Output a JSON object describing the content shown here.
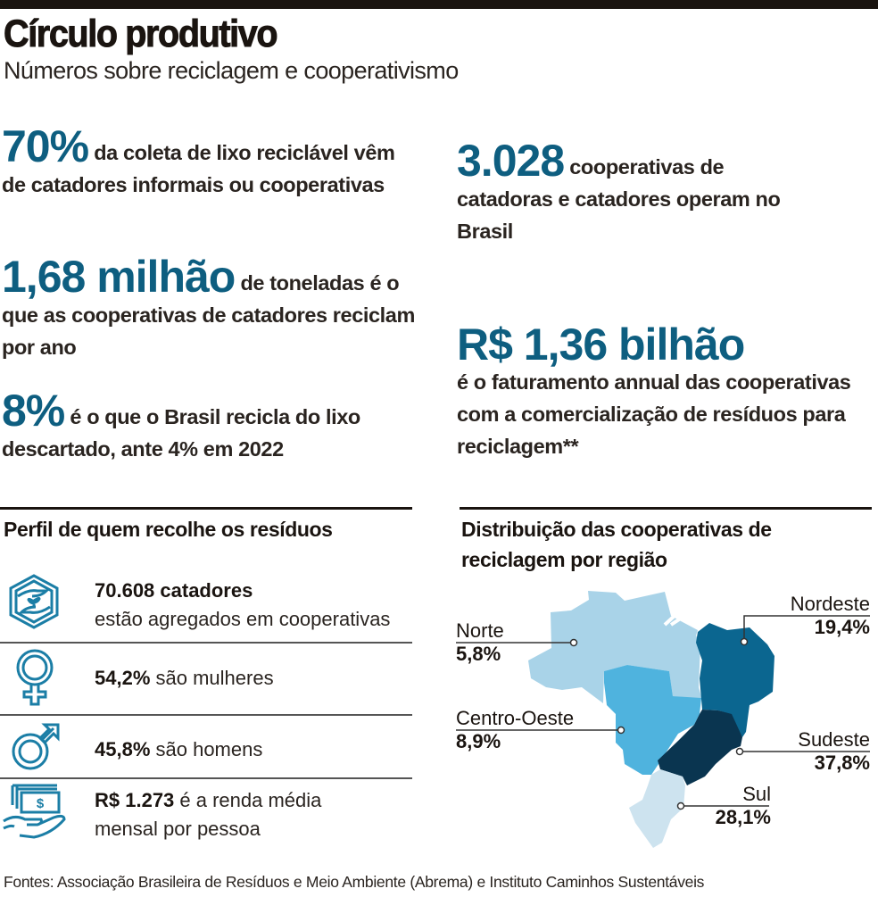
{
  "header": {
    "title": "Círculo produtivo",
    "subtitle": "Números sobre reciclagem e cooperativismo"
  },
  "stats": [
    {
      "value": "70%",
      "text": " da coleta de lixo reciclável vêm de catadores informais ou cooperativas"
    },
    {
      "value": "1,68 milhão",
      "text": " de toneladas é o que as cooperativas de catadores reciclam por ano"
    },
    {
      "value": "8%",
      "text": " é o que o Brasil recicla do lixo descartado, ante 4% em 2022"
    },
    {
      "value": "3.028",
      "text": " cooperativas de catadoras e catadores operam no Brasil"
    },
    {
      "value": "R$ 1,36 bilhão",
      "text": "é o faturamento annual das cooperativas com a comercialização de resíduos para reciclagem**"
    }
  ],
  "profile": {
    "title": "Perfil de quem recolhe os resíduos",
    "items": [
      {
        "icon": "hands-plant-icon",
        "bold": "70.608 catadores",
        "text": "estão agregados em cooperativas"
      },
      {
        "icon": "female-symbol-icon",
        "bold": "54,2%",
        "text": " são mulheres"
      },
      {
        "icon": "male-symbol-icon",
        "bold": "45,8%",
        "text": " são homens"
      },
      {
        "icon": "money-hand-icon",
        "bold": "R$ 1.273",
        "text": " é a renda média mensal por pessoa"
      }
    ]
  },
  "map": {
    "title": "Distribuição das cooperativas de reciclagem por região",
    "regions": [
      {
        "name": "Norte",
        "value": "5,8%",
        "color": "#a9d3e8"
      },
      {
        "name": "Nordeste",
        "value": "19,4%",
        "color": "#0b6690"
      },
      {
        "name": "Centro-Oeste",
        "value": "8,9%",
        "color": "#4fb3de"
      },
      {
        "name": "Sudeste",
        "value": "37,8%",
        "color": "#0a3550"
      },
      {
        "name": "Sul",
        "value": "28,1%",
        "color": "#cde3ef"
      }
    ]
  },
  "colors": {
    "accent": "#0e5e80",
    "text": "#1a1410"
  },
  "footer": "Fontes: Associação Brasileira de Resíduos e Meio Ambiente (Abrema) e Instituto Caminhos Sustentáveis"
}
